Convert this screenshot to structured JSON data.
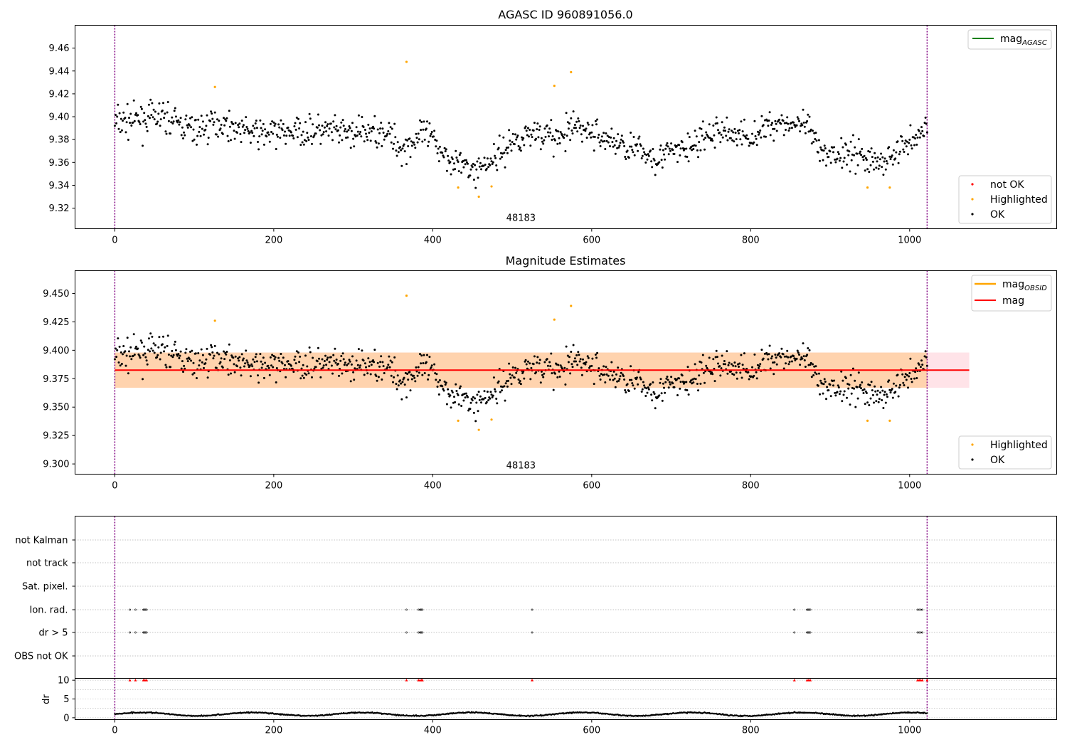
{
  "chart_data": [
    {
      "id": "agasc",
      "type": "scatter",
      "title": "AGASC ID 960891056.0",
      "xlim": [
        -50,
        1185
      ],
      "ylim": [
        9.302,
        9.48
      ],
      "xticks": [
        0,
        200,
        400,
        600,
        800,
        1000
      ],
      "yticks": [
        9.32,
        9.34,
        9.36,
        9.38,
        9.4,
        9.42,
        9.44,
        9.46
      ],
      "ytick_labels": [
        "9.32",
        "9.34",
        "9.36",
        "9.38",
        "9.40",
        "9.42",
        "9.44",
        "9.46"
      ],
      "vlines": [
        0,
        1022
      ],
      "annotation": {
        "text": "48183",
        "x": 511,
        "y": 9.309
      },
      "legend_lines": [
        {
          "label": "mag",
          "sub": "AGASC",
          "color": "#008000"
        }
      ],
      "legend_points": [
        {
          "label": "not OK",
          "color": "#ff0000"
        },
        {
          "label": "Highlighted",
          "color": "#ffa500"
        },
        {
          "label": "OK",
          "color": "#000000"
        }
      ],
      "highlighted": [
        [
          126,
          9.426
        ],
        [
          367,
          9.448
        ],
        [
          432,
          9.338
        ],
        [
          458,
          9.33
        ],
        [
          474,
          9.339
        ],
        [
          553,
          9.427
        ],
        [
          574,
          9.439
        ],
        [
          947,
          9.338
        ],
        [
          975,
          9.338
        ]
      ],
      "ok_series": "stars"
    },
    {
      "id": "estimates",
      "type": "scatter",
      "title": "Magnitude Estimates",
      "xlim": [
        -50,
        1185
      ],
      "ylim": [
        9.291,
        9.47
      ],
      "xticks": [
        0,
        200,
        400,
        600,
        800,
        1000
      ],
      "yticks": [
        9.3,
        9.325,
        9.35,
        9.375,
        9.4,
        9.425,
        9.45
      ],
      "ytick_labels": [
        "9.300",
        "9.325",
        "9.350",
        "9.375",
        "9.400",
        "9.425",
        "9.450"
      ],
      "vlines": [
        0,
        1022
      ],
      "annotation": {
        "text": "48183",
        "x": 511,
        "y": 9.296
      },
      "mag_line": {
        "value": 9.3825,
        "x_range": [
          0,
          1075
        ],
        "color": "#ff0000"
      },
      "obsid_band": {
        "low": 9.367,
        "high": 9.398,
        "x_range": [
          0,
          1022
        ],
        "color": "#ffa500"
      },
      "mag_band": {
        "low": 9.367,
        "high": 9.398,
        "x_range": [
          0,
          1075
        ],
        "color": "#ffc0cb"
      },
      "legend_lines": [
        {
          "label": "mag",
          "sub": "OBSID",
          "color": "#ffa500"
        },
        {
          "label": "mag",
          "sub": "",
          "color": "#ff0000"
        }
      ],
      "legend_points": [
        {
          "label": "Highlighted",
          "color": "#ffa500"
        },
        {
          "label": "OK",
          "color": "#000000"
        }
      ],
      "highlighted": [
        [
          126,
          9.426
        ],
        [
          367,
          9.448
        ],
        [
          432,
          9.338
        ],
        [
          458,
          9.33
        ],
        [
          474,
          9.339
        ],
        [
          553,
          9.427
        ],
        [
          574,
          9.439
        ],
        [
          947,
          9.338
        ],
        [
          975,
          9.338
        ]
      ],
      "ok_series": "stars"
    },
    {
      "id": "flags",
      "type": "scatter",
      "xlim": [
        -50,
        1185
      ],
      "categories": [
        "not Kalman",
        "not track",
        "Sat. pixel.",
        "Ion. rad.",
        "dr > 5",
        "OBS not OK"
      ],
      "vlines": [
        0,
        1022
      ],
      "flag_points": {
        "Ion. rad.": [
          19,
          26,
          36,
          37,
          38,
          39,
          40,
          367,
          382,
          384,
          385,
          386,
          387,
          525,
          855,
          871,
          872,
          873,
          874,
          875,
          1010,
          1012,
          1014,
          1016
        ],
        "dr > 5": [
          19,
          26,
          36,
          37,
          38,
          39,
          40,
          367,
          382,
          384,
          385,
          386,
          387,
          525,
          855,
          871,
          872,
          873,
          874,
          875,
          1010,
          1012,
          1014,
          1016
        ]
      }
    },
    {
      "id": "dr",
      "type": "scatter",
      "ylabel": "dr",
      "xlim": [
        -50,
        1185
      ],
      "ylim": [
        -0.5,
        10.5
      ],
      "xticks": [
        0,
        200,
        400,
        600,
        800,
        1000
      ],
      "yticks": [
        0,
        5,
        10
      ],
      "ytick_labels": [
        "0",
        "5",
        "10"
      ],
      "vlines": [
        0,
        1022
      ],
      "clipped_markers": [
        19,
        26,
        36,
        38,
        40,
        367,
        382,
        384,
        386,
        387,
        525,
        855,
        871,
        873,
        875,
        1010,
        1012,
        1014,
        1016,
        1022
      ]
    }
  ],
  "colors": {
    "ok": "#000000",
    "highlighted": "#ffa500",
    "not_ok": "#ff0000",
    "vline": "#800080",
    "grid": "#b0b0b0"
  }
}
